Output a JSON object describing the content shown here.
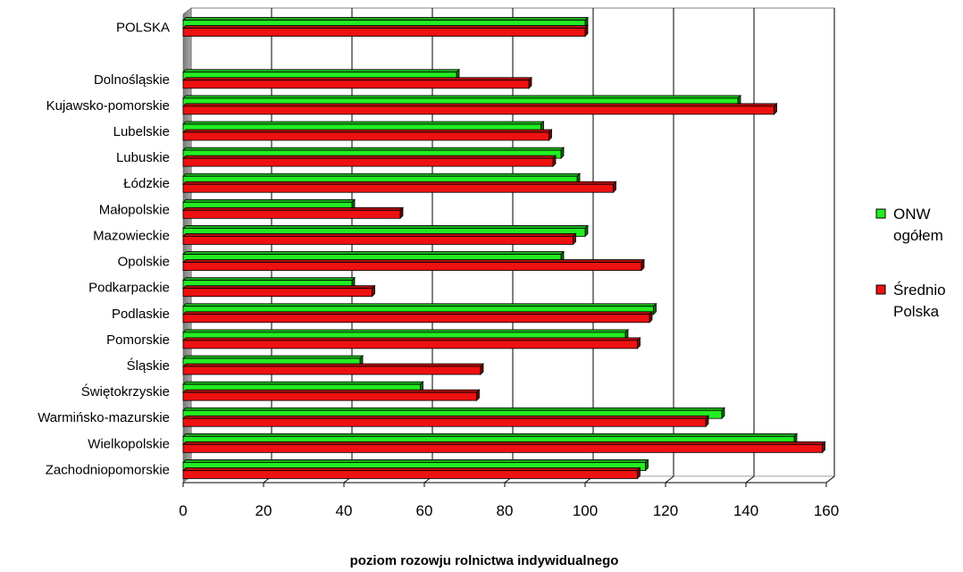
{
  "chart_data": {
    "type": "bar",
    "orientation": "horizontal",
    "title": "",
    "xlabel": "poziom rozowju rolnictwa indywidualnego",
    "ylabel": "",
    "xlim": [
      0,
      160
    ],
    "xticks": [
      0,
      20,
      40,
      60,
      80,
      100,
      120,
      140,
      160
    ],
    "grid": "vertical major gridlines",
    "legend_position": "right",
    "categories": [
      "POLSKA",
      "",
      "Dolnośląskie",
      "Kujawsko-pomorskie",
      "Lubelskie",
      "Lubuskie",
      "Łódzkie",
      "Małopolskie",
      "Mazowieckie",
      "Opolskie",
      "Podkarpackie",
      "Podlaskie",
      "Pomorskie",
      "Śląskie",
      "Świętokrzyskie",
      "Warmińsko-mazurskie",
      "Wielkopolskie",
      "Zachodniopomorskie"
    ],
    "series": [
      {
        "name": "ONW ogółem",
        "legend_lines": [
          "ONW",
          "ogółem"
        ],
        "color": "#22ee22",
        "values": [
          100,
          null,
          68,
          138,
          89,
          94,
          98,
          42,
          100,
          94,
          42,
          117,
          110,
          44,
          59,
          134,
          152,
          115
        ]
      },
      {
        "name": "Średnio Polska",
        "legend_lines": [
          "Średnio",
          "Polska"
        ],
        "color": "#ee1111",
        "values": [
          100,
          null,
          86,
          147,
          91,
          92,
          107,
          54,
          97,
          114,
          47,
          116,
          113,
          74,
          73,
          130,
          159,
          113
        ]
      }
    ]
  }
}
